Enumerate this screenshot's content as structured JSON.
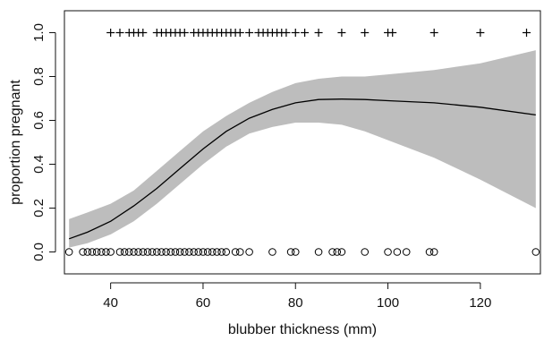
{
  "chart_data": {
    "type": "line",
    "title": "",
    "xlabel": "blubber thickness (mm)",
    "ylabel": "proportion pregnant",
    "xlim": [
      30,
      133
    ],
    "ylim": [
      -0.1,
      1.1
    ],
    "x_ticks": [
      40,
      60,
      80,
      100,
      120
    ],
    "x_tick_labels": [
      "40",
      "60",
      "80",
      "100",
      "120"
    ],
    "y_ticks": [
      0.0,
      0.2,
      0.4,
      0.6,
      0.8,
      1.0
    ],
    "y_tick_labels": [
      "0.0",
      "0.2",
      "0.4",
      "0.6",
      "0.8",
      "1.0"
    ],
    "grid": false,
    "colors": {
      "band": "#bdbdbd",
      "line": "#000000",
      "axis": "#111111"
    },
    "fit": {
      "x": [
        31,
        35,
        40,
        45,
        50,
        55,
        60,
        65,
        70,
        75,
        80,
        85,
        90,
        95,
        100,
        110,
        120,
        132
      ],
      "y": [
        0.06,
        0.09,
        0.14,
        0.21,
        0.29,
        0.38,
        0.47,
        0.55,
        0.61,
        0.65,
        0.68,
        0.695,
        0.697,
        0.695,
        0.69,
        0.68,
        0.66,
        0.625
      ]
    },
    "ci_band": {
      "x": [
        31,
        35,
        40,
        45,
        50,
        55,
        60,
        65,
        70,
        75,
        80,
        85,
        90,
        95,
        100,
        110,
        120,
        132
      ],
      "lower": [
        0.02,
        0.04,
        0.08,
        0.14,
        0.22,
        0.31,
        0.4,
        0.48,
        0.54,
        0.57,
        0.59,
        0.59,
        0.58,
        0.55,
        0.51,
        0.43,
        0.33,
        0.2
      ],
      "upper": [
        0.15,
        0.18,
        0.22,
        0.28,
        0.37,
        0.46,
        0.55,
        0.62,
        0.68,
        0.73,
        0.77,
        0.79,
        0.8,
        0.8,
        0.81,
        0.83,
        0.86,
        0.92
      ]
    },
    "pregnant_obs_x": [
      40,
      42,
      44,
      45,
      46,
      47,
      50,
      51,
      52,
      53,
      54,
      55,
      56,
      58,
      59,
      60,
      61,
      62,
      63,
      64,
      65,
      66,
      67,
      68,
      70,
      72,
      73,
      74,
      75,
      76,
      77,
      78,
      80,
      82,
      85,
      90,
      95,
      100,
      101,
      110,
      120,
      130
    ],
    "not_pregnant_obs_x": [
      31,
      34,
      35,
      36,
      37,
      38,
      39,
      40,
      42,
      43,
      44,
      45,
      46,
      47,
      48,
      49,
      50,
      51,
      52,
      53,
      54,
      55,
      56,
      57,
      58,
      59,
      60,
      61,
      62,
      63,
      64,
      65,
      67,
      68,
      70,
      75,
      79,
      80,
      85,
      88,
      89,
      90,
      95,
      100,
      102,
      104,
      109,
      110,
      132
    ]
  }
}
